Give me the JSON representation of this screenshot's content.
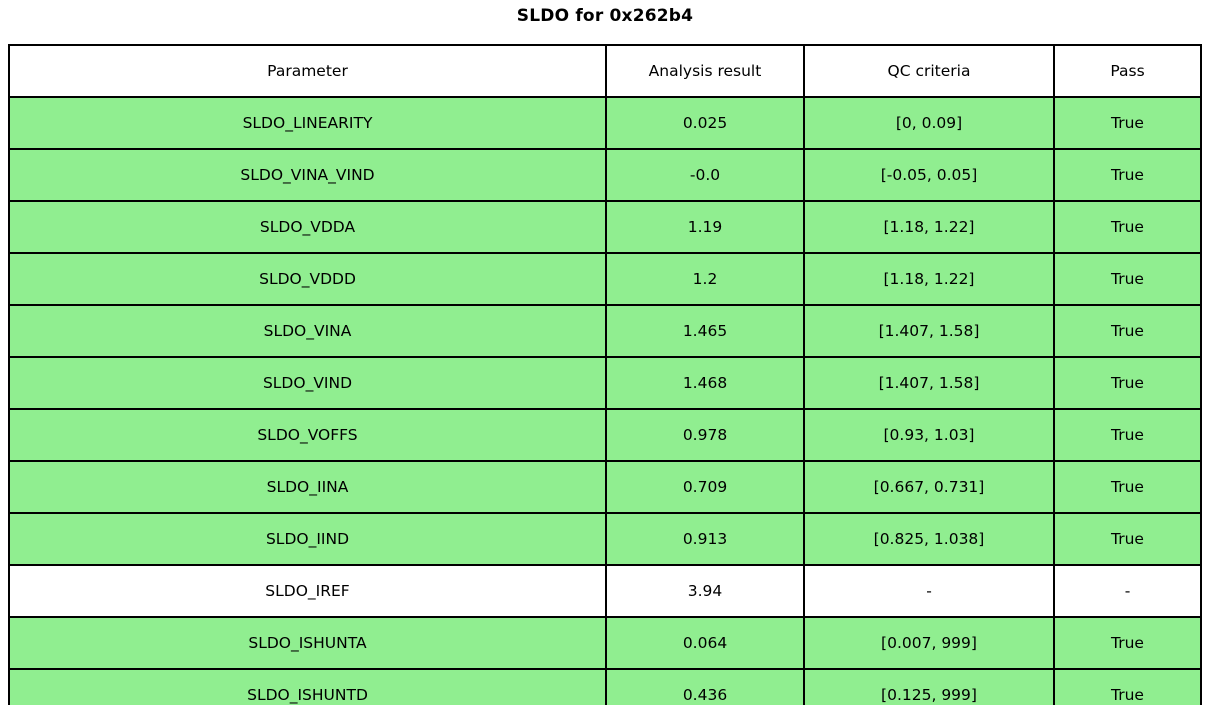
{
  "chart_data": {
    "type": "table",
    "title": "SLDO for 0x262b4",
    "columns": [
      "Parameter",
      "Analysis result",
      "QC criteria",
      "Pass"
    ],
    "rows": [
      {
        "parameter": "SLDO_LINEARITY",
        "result": "0.025",
        "criteria": "[0, 0.09]",
        "pass": "True",
        "highlight": true
      },
      {
        "parameter": "SLDO_VINA_VIND",
        "result": "-0.0",
        "criteria": "[-0.05, 0.05]",
        "pass": "True",
        "highlight": true
      },
      {
        "parameter": "SLDO_VDDA",
        "result": "1.19",
        "criteria": "[1.18, 1.22]",
        "pass": "True",
        "highlight": true
      },
      {
        "parameter": "SLDO_VDDD",
        "result": "1.2",
        "criteria": "[1.18, 1.22]",
        "pass": "True",
        "highlight": true
      },
      {
        "parameter": "SLDO_VINA",
        "result": "1.465",
        "criteria": "[1.407, 1.58]",
        "pass": "True",
        "highlight": true
      },
      {
        "parameter": "SLDO_VIND",
        "result": "1.468",
        "criteria": "[1.407, 1.58]",
        "pass": "True",
        "highlight": true
      },
      {
        "parameter": "SLDO_VOFFS",
        "result": "0.978",
        "criteria": "[0.93, 1.03]",
        "pass": "True",
        "highlight": true
      },
      {
        "parameter": "SLDO_IINA",
        "result": "0.709",
        "criteria": "[0.667, 0.731]",
        "pass": "True",
        "highlight": true
      },
      {
        "parameter": "SLDO_IIND",
        "result": "0.913",
        "criteria": "[0.825, 1.038]",
        "pass": "True",
        "highlight": true
      },
      {
        "parameter": "SLDO_IREF",
        "result": "3.94",
        "criteria": "-",
        "pass": "-",
        "highlight": false
      },
      {
        "parameter": "SLDO_ISHUNTA",
        "result": "0.064",
        "criteria": "[0.007, 999]",
        "pass": "True",
        "highlight": true
      },
      {
        "parameter": "SLDO_ISHUNTD",
        "result": "0.436",
        "criteria": "[0.125, 999]",
        "pass": "True",
        "highlight": true
      }
    ],
    "colors": {
      "pass_row_background": "#90ee90",
      "neutral_row_background": "#ffffff",
      "border": "#000000",
      "text": "#000000"
    },
    "layout": {
      "legend": "none",
      "grid": "table-borders"
    }
  }
}
